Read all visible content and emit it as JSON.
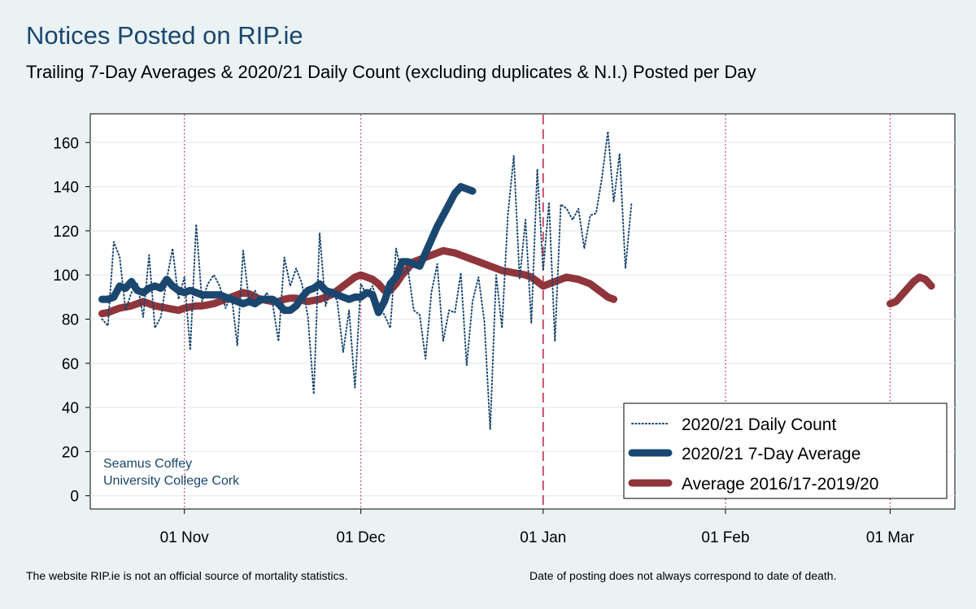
{
  "header": {
    "title": "Notices Posted on RIP.ie",
    "subtitle": "Trailing 7-Day Averages & 2020/21 Daily Count (excluding duplicates & N.I.) Posted per Day"
  },
  "footer": {
    "left": "The website RIP.ie is not an official source of mortality statistics.",
    "right": "Date of posting does not always correspond to date of death."
  },
  "credit": {
    "line1": "Seamus Coffey",
    "line2": "University College Cork"
  },
  "colors": {
    "daily": "#1a476f",
    "avg2021": "#1a476f",
    "hist": "#90353b",
    "month_line": "#c0304a",
    "jan_line": "#c0304a",
    "grid": "#e8eff2"
  },
  "chart_data": {
    "type": "line",
    "title": "Notices Posted on RIP.ie",
    "x_axis": {
      "type": "date",
      "range": [
        "2020-10-16",
        "2021-03-12"
      ],
      "ticks": [
        {
          "date": "2020-11-01",
          "label": "01 Nov"
        },
        {
          "date": "2020-12-01",
          "label": "01 Dec"
        },
        {
          "date": "2021-01-01",
          "label": "01 Jan"
        },
        {
          "date": "2021-02-01",
          "label": "01 Feb"
        },
        {
          "date": "2021-03-01",
          "label": "01 Mar"
        }
      ],
      "reference_lines": [
        {
          "date": "2020-11-01",
          "style": "dotted"
        },
        {
          "date": "2020-12-01",
          "style": "dotted"
        },
        {
          "date": "2021-01-01",
          "style": "dashed"
        },
        {
          "date": "2021-02-01",
          "style": "dotted"
        },
        {
          "date": "2021-03-01",
          "style": "dotted"
        }
      ]
    },
    "y_axis": {
      "range": [
        -6,
        173
      ],
      "ticks": [
        0,
        20,
        40,
        60,
        80,
        100,
        120,
        140,
        160
      ],
      "grid": true
    },
    "legend": {
      "position": "bottom-right",
      "entries": [
        "2020/21 Daily Count",
        "2020/21 7-Day Average",
        "Average 2016/17-2019/20"
      ]
    },
    "series": [
      {
        "name": "2020/21 Daily Count",
        "style": "dotted",
        "start_date": "2020-10-18",
        "values": [
          80,
          77,
          115,
          108,
          84,
          92,
          96,
          81,
          109,
          76,
          81,
          98,
          112,
          89,
          99,
          66,
          123,
          88,
          96,
          100,
          95,
          85,
          91,
          68,
          111,
          88,
          93,
          87,
          92,
          87,
          70,
          108,
          95,
          103,
          96,
          81,
          46,
          119,
          86,
          94,
          88,
          65,
          84,
          49,
          96,
          91,
          95,
          86,
          82,
          76,
          112,
          100,
          103,
          84,
          82,
          62,
          92,
          105,
          70,
          84,
          83,
          101,
          59,
          88,
          99,
          79,
          30,
          100,
          76,
          127,
          154,
          98,
          125,
          78,
          148,
          102,
          133,
          70,
          132,
          130,
          125,
          130,
          112,
          127,
          128,
          144,
          165,
          133,
          155,
          103,
          132
        ]
      },
      {
        "name": "2020/21 7-Day Average",
        "style": "thick",
        "start_date": "2020-10-18",
        "values": [
          89,
          89,
          90,
          95,
          94,
          97,
          93,
          92,
          94,
          95,
          94,
          98,
          95,
          93,
          92,
          93,
          92,
          91,
          91,
          91,
          91,
          90,
          89,
          88,
          87,
          88,
          87,
          89,
          89,
          89,
          87,
          84,
          84,
          86,
          90,
          93,
          94,
          96,
          93,
          92,
          91,
          90,
          89,
          90,
          90,
          92,
          91,
          83,
          88,
          96,
          99,
          106,
          106,
          105,
          104,
          110,
          116,
          122,
          127,
          132,
          137,
          140,
          139,
          138
        ]
      },
      {
        "name": "Average 2016/17-2019/20",
        "style": "thick",
        "start_date": "2020-10-18",
        "segments": [
          {
            "start_date": "2020-10-18",
            "values": [
              82.5,
              83,
              84,
              85,
              85.5,
              86,
              87,
              88,
              87,
              86,
              85.5,
              85,
              84.5,
              84,
              85,
              85.5,
              86,
              86,
              86.5,
              87,
              88,
              89,
              90,
              91,
              92,
              91.5,
              90,
              89,
              88.5,
              88,
              88,
              89,
              89.5,
              89.5,
              88.5,
              88,
              88.5,
              89,
              90,
              91,
              93,
              95,
              97,
              99,
              100,
              99,
              98,
              96,
              93,
              93,
              96,
              100,
              103,
              106,
              107,
              108,
              109,
              110,
              111,
              110.5,
              110,
              109,
              108,
              107,
              106,
              105,
              104,
              103,
              102,
              101.5,
              101,
              100.5,
              100,
              99,
              97,
              95,
              96,
              97,
              98,
              99,
              98.5,
              98,
              97,
              96,
              94,
              92,
              90,
              89
            ]
          },
          {
            "start_date": "2021-03-01",
            "values": [
              87,
              88,
              91,
              94,
              97,
              99,
              98,
              95
            ]
          }
        ]
      }
    ]
  }
}
